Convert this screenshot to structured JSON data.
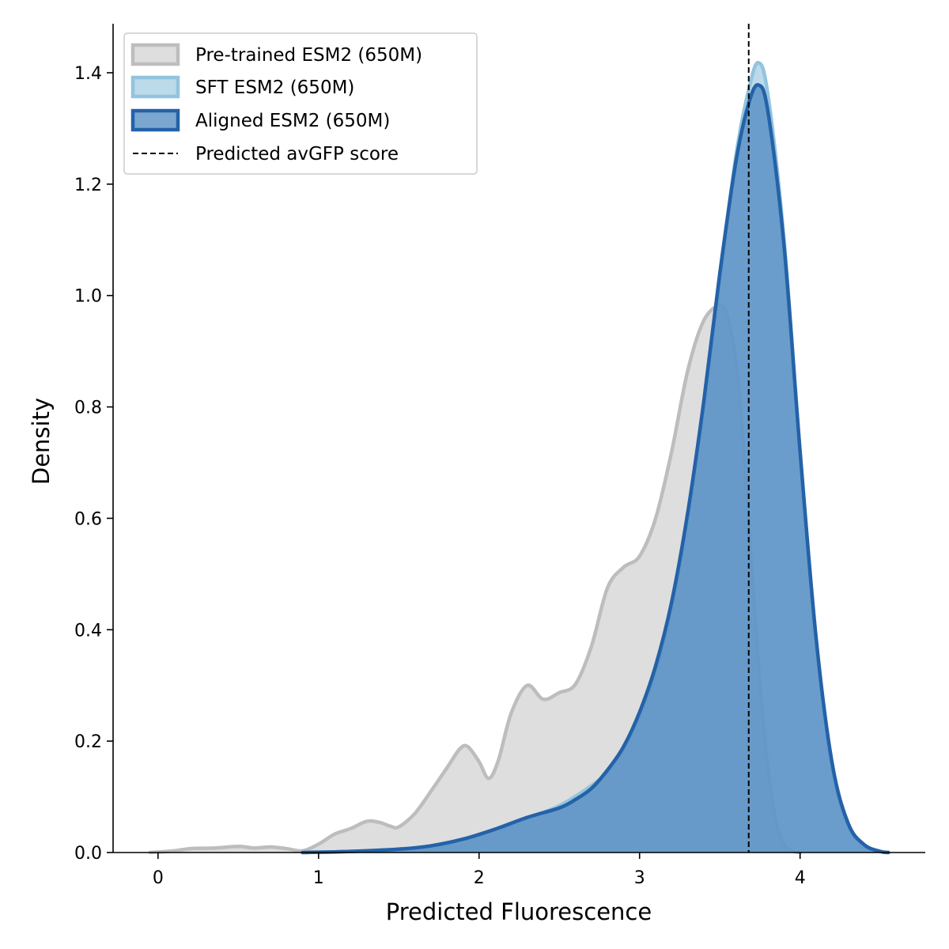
{
  "chart_data": {
    "type": "area",
    "xlabel": "Predicted Fluorescence",
    "ylabel": "Density",
    "xlim": [
      -0.28,
      4.78
    ],
    "ylim": [
      0,
      1.488
    ],
    "xticks": [
      0,
      1,
      2,
      3,
      4
    ],
    "yticks": [
      "0.0",
      "0.2",
      "0.4",
      "0.6",
      "0.8",
      "1.0",
      "1.2",
      "1.4"
    ],
    "grid": false,
    "legend_position": "top-left",
    "reference_line": {
      "name": "Predicted avGFP score",
      "x": 3.68,
      "style": "dashed",
      "color": "#000000"
    },
    "series": [
      {
        "name": "Pre-trained ESM2 (650M)",
        "line_color": "#bdbdbd",
        "fill_color": "#c8c8c8",
        "fill_opacity": 0.6,
        "points": [
          [
            -0.05,
            0.0
          ],
          [
            0.1,
            0.003
          ],
          [
            0.2,
            0.007
          ],
          [
            0.35,
            0.008
          ],
          [
            0.5,
            0.011
          ],
          [
            0.6,
            0.008
          ],
          [
            0.7,
            0.01
          ],
          [
            0.8,
            0.007
          ],
          [
            0.9,
            0.003
          ],
          [
            1.0,
            0.015
          ],
          [
            1.1,
            0.033
          ],
          [
            1.2,
            0.043
          ],
          [
            1.3,
            0.056
          ],
          [
            1.38,
            0.054
          ],
          [
            1.45,
            0.047
          ],
          [
            1.5,
            0.046
          ],
          [
            1.6,
            0.07
          ],
          [
            1.7,
            0.11
          ],
          [
            1.8,
            0.152
          ],
          [
            1.88,
            0.186
          ],
          [
            1.93,
            0.19
          ],
          [
            2.0,
            0.163
          ],
          [
            2.06,
            0.133
          ],
          [
            2.12,
            0.165
          ],
          [
            2.2,
            0.25
          ],
          [
            2.3,
            0.3
          ],
          [
            2.4,
            0.275
          ],
          [
            2.5,
            0.287
          ],
          [
            2.6,
            0.302
          ],
          [
            2.7,
            0.37
          ],
          [
            2.8,
            0.475
          ],
          [
            2.9,
            0.512
          ],
          [
            3.0,
            0.532
          ],
          [
            3.1,
            0.6
          ],
          [
            3.2,
            0.72
          ],
          [
            3.3,
            0.865
          ],
          [
            3.4,
            0.955
          ],
          [
            3.5,
            0.982
          ],
          [
            3.55,
            0.96
          ],
          [
            3.6,
            0.88
          ],
          [
            3.65,
            0.72
          ],
          [
            3.7,
            0.5
          ],
          [
            3.75,
            0.3
          ],
          [
            3.8,
            0.15
          ],
          [
            3.85,
            0.055
          ],
          [
            3.9,
            0.015
          ],
          [
            3.95,
            0.003
          ],
          [
            4.0,
            0.0
          ]
        ]
      },
      {
        "name": "SFT ESM2 (650M)",
        "line_color": "#93c4de",
        "fill_color": "#9ecae1",
        "fill_opacity": 0.7,
        "points": [
          [
            0.9,
            0.0
          ],
          [
            1.2,
            0.002
          ],
          [
            1.5,
            0.006
          ],
          [
            1.7,
            0.012
          ],
          [
            1.9,
            0.024
          ],
          [
            2.1,
            0.04
          ],
          [
            2.3,
            0.062
          ],
          [
            2.5,
            0.084
          ],
          [
            2.7,
            0.12
          ],
          [
            2.8,
            0.145
          ],
          [
            2.9,
            0.185
          ],
          [
            3.0,
            0.245
          ],
          [
            3.1,
            0.325
          ],
          [
            3.2,
            0.44
          ],
          [
            3.3,
            0.6
          ],
          [
            3.4,
            0.8
          ],
          [
            3.5,
            1.03
          ],
          [
            3.6,
            1.25
          ],
          [
            3.68,
            1.37
          ],
          [
            3.74,
            1.418
          ],
          [
            3.8,
            1.36
          ],
          [
            3.9,
            1.1
          ],
          [
            4.0,
            0.72
          ],
          [
            4.1,
            0.38
          ],
          [
            4.2,
            0.155
          ],
          [
            4.3,
            0.05
          ],
          [
            4.4,
            0.013
          ],
          [
            4.5,
            0.002
          ],
          [
            4.55,
            0.0
          ]
        ]
      },
      {
        "name": "Aligned ESM2 (650M)",
        "line_color": "#2462a8",
        "fill_color": "#4f88c0",
        "fill_opacity": 0.75,
        "points": [
          [
            0.9,
            0.0
          ],
          [
            1.2,
            0.002
          ],
          [
            1.5,
            0.006
          ],
          [
            1.7,
            0.012
          ],
          [
            1.9,
            0.024
          ],
          [
            2.1,
            0.042
          ],
          [
            2.3,
            0.063
          ],
          [
            2.5,
            0.08
          ],
          [
            2.6,
            0.095
          ],
          [
            2.7,
            0.115
          ],
          [
            2.8,
            0.148
          ],
          [
            2.9,
            0.19
          ],
          [
            3.0,
            0.252
          ],
          [
            3.1,
            0.335
          ],
          [
            3.2,
            0.45
          ],
          [
            3.3,
            0.61
          ],
          [
            3.4,
            0.81
          ],
          [
            3.5,
            1.04
          ],
          [
            3.6,
            1.24
          ],
          [
            3.68,
            1.345
          ],
          [
            3.74,
            1.378
          ],
          [
            3.8,
            1.33
          ],
          [
            3.9,
            1.09
          ],
          [
            4.0,
            0.72
          ],
          [
            4.1,
            0.385
          ],
          [
            4.2,
            0.16
          ],
          [
            4.3,
            0.052
          ],
          [
            4.4,
            0.014
          ],
          [
            4.5,
            0.002
          ],
          [
            4.55,
            0.0
          ]
        ]
      }
    ]
  }
}
